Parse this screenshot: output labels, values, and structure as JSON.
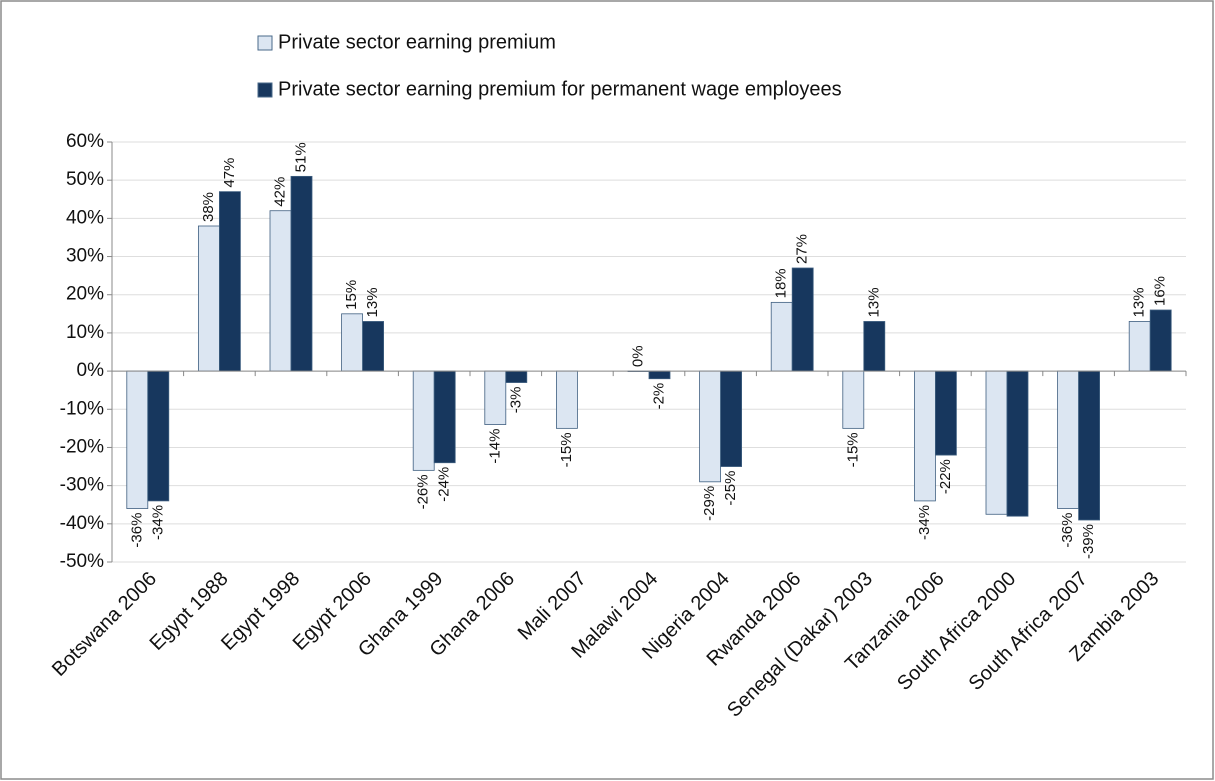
{
  "chart_data": {
    "type": "bar",
    "categories": [
      "Botswana 2006",
      "Egypt 1988",
      "Egypt 1998",
      "Egypt 2006",
      "Ghana 1999",
      "Ghana 2006",
      "Mali 2007",
      "Malawi 2004",
      "Nigeria 2004",
      "Rwanda 2006",
      "Senegal (Dakar) 2003",
      "Tanzania 2006",
      "South Africa 2000",
      "South Africa 2007",
      "Zambia 2003"
    ],
    "series": [
      {
        "name": "Private sector earning premium",
        "color": "#dce6f2",
        "values": [
          -36,
          38,
          42,
          15,
          -26,
          -14,
          -15,
          0,
          -29,
          18,
          -15,
          -34,
          -37.5,
          -36,
          13
        ],
        "value_labels": [
          "-36%",
          "38%",
          "42%",
          "15%",
          "-26%",
          "-14%",
          "-15%",
          "0%",
          "-29%",
          "18%",
          "-15%",
          "-34%",
          null,
          "-36%",
          "13%"
        ]
      },
      {
        "name": "Private sector earning premium for permanent wage employees",
        "color": "#17375e",
        "values": [
          -34,
          47,
          51,
          13,
          -24,
          -3,
          null,
          -2,
          -25,
          27,
          13,
          -22,
          -38,
          -39,
          16
        ],
        "value_labels": [
          "-34%",
          "47%",
          "51%",
          "13%",
          "-24%",
          "-3%",
          null,
          "-2%",
          "-25%",
          "27%",
          "13%",
          "-22%",
          null,
          "-39%",
          "16%"
        ]
      }
    ],
    "ylim": [
      -50,
      60
    ],
    "yticks": [
      {
        "value": -50,
        "label": "-50%"
      },
      {
        "value": -40,
        "label": "-40%"
      },
      {
        "value": -30,
        "label": "-30%"
      },
      {
        "value": -20,
        "label": "-20%"
      },
      {
        "value": -10,
        "label": "-10%"
      },
      {
        "value": 0,
        "label": "0%"
      },
      {
        "value": 10,
        "label": "10%"
      },
      {
        "value": 20,
        "label": "20%"
      },
      {
        "value": 30,
        "label": "30%"
      },
      {
        "value": 40,
        "label": "40%"
      },
      {
        "value": 50,
        "label": "50%"
      },
      {
        "value": 60,
        "label": "60%"
      }
    ],
    "grid": true,
    "legend": "top"
  }
}
